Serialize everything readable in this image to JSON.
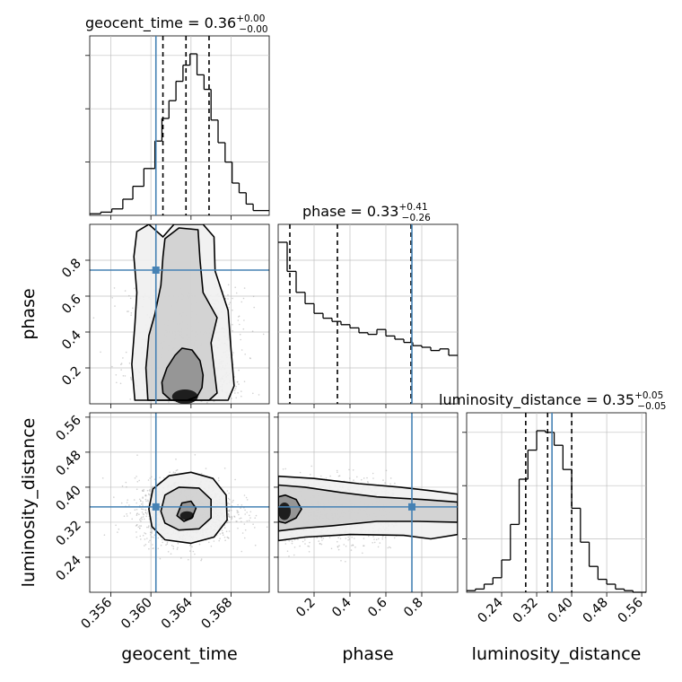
{
  "chart_data": {
    "type": "corner",
    "parameters": [
      "geocent_time",
      "phase",
      "luminosity_distance"
    ],
    "truths": [
      0.3605,
      0.745,
      0.355
    ],
    "colors": {
      "truth": "#4682b4",
      "hist": "#000000",
      "grid": "#c0c0c0",
      "points": "#9a9a9a"
    },
    "marginals": [
      {
        "parameter": "geocent_time",
        "title": "geocent_time = 0.36",
        "sup": "+0.00",
        "sub": "−0.00",
        "median": 0.3635,
        "quantiles": [
          0.3612,
          0.3635,
          0.3658
        ],
        "range": [
          0.3539,
          0.3718
        ],
        "bin_edges": [
          0.3539,
          0.355,
          0.3561,
          0.3572,
          0.3582,
          0.3593,
          0.3604,
          0.3611,
          0.3618,
          0.3625,
          0.3632,
          0.3639,
          0.3646,
          0.3653,
          0.366,
          0.3667,
          0.3674,
          0.3681,
          0.3688,
          0.3695,
          0.3702,
          0.3718
        ],
        "density": [
          0.01,
          0.02,
          0.04,
          0.1,
          0.18,
          0.29,
          0.46,
          0.6,
          0.71,
          0.83,
          0.93,
          1.0,
          0.87,
          0.78,
          0.59,
          0.45,
          0.33,
          0.2,
          0.14,
          0.07,
          0.03
        ],
        "ytick_fractions": [
          0.33,
          0.66,
          0.99
        ],
        "xticks": [
          0.356,
          0.36,
          0.364,
          0.368
        ],
        "xtick_labels": [
          "0.356",
          "0.360",
          "0.364",
          "0.368"
        ]
      },
      {
        "parameter": "phase",
        "title": "phase = 0.33",
        "sup": "+0.41",
        "sub": "−0.26",
        "median": 0.33,
        "quantiles": [
          0.065,
          0.33,
          0.74
        ],
        "range": [
          0.0,
          1.0
        ],
        "bin_edges": [
          0.0,
          0.05,
          0.1,
          0.15,
          0.2,
          0.25,
          0.3,
          0.35,
          0.4,
          0.45,
          0.5,
          0.55,
          0.6,
          0.65,
          0.7,
          0.75,
          0.8,
          0.85,
          0.9,
          0.95,
          1.0
        ],
        "density": [
          1.0,
          0.82,
          0.69,
          0.62,
          0.56,
          0.53,
          0.51,
          0.49,
          0.47,
          0.44,
          0.43,
          0.46,
          0.42,
          0.4,
          0.38,
          0.36,
          0.35,
          0.33,
          0.34,
          0.3
        ],
        "ytick_fractions": [],
        "xticks": [
          0.2,
          0.4,
          0.6,
          0.8
        ],
        "xtick_labels": [
          "0.2",
          "0.4",
          "0.6",
          "0.8"
        ]
      },
      {
        "parameter": "luminosity_distance",
        "title": "luminosity_distance = 0.35",
        "sup": "+0.05",
        "sub": "−0.05",
        "median": 0.345,
        "quantiles": [
          0.295,
          0.345,
          0.4
        ],
        "range": [
          0.16,
          0.57
        ],
        "bin_edges": [
          0.16,
          0.18,
          0.2,
          0.22,
          0.24,
          0.26,
          0.28,
          0.3,
          0.32,
          0.34,
          0.36,
          0.38,
          0.4,
          0.42,
          0.44,
          0.46,
          0.48,
          0.5,
          0.52,
          0.54,
          0.56,
          0.57
        ],
        "density": [
          0.01,
          0.02,
          0.05,
          0.09,
          0.2,
          0.42,
          0.7,
          0.88,
          1.0,
          0.99,
          0.91,
          0.76,
          0.52,
          0.31,
          0.16,
          0.08,
          0.05,
          0.02,
          0.01,
          0.0,
          0.0
        ],
        "ytick_fractions": [
          0.33,
          0.66,
          0.99
        ],
        "xticks": [
          0.24,
          0.32,
          0.4,
          0.48,
          0.56
        ],
        "xtick_labels": [
          "0.24",
          "0.32",
          "0.40",
          "0.48",
          "0.56"
        ]
      }
    ],
    "joints": [
      {
        "x_parameter": "geocent_time",
        "y_parameter": "phase",
        "x_range": [
          0.3539,
          0.3718
        ],
        "y_range": [
          0.0,
          1.0
        ],
        "yticks": [
          0.2,
          0.4,
          0.6,
          0.8
        ],
        "ytick_labels": [
          "0.2",
          "0.4",
          "0.6",
          "0.8"
        ],
        "x_center": 0.3635,
        "x_sigma": 0.00245,
        "y_profile": "decreasing",
        "contours": [
          {
            "level": 0.39,
            "points": [
              [
                0.362,
                0.02
              ],
              [
                0.3612,
                0.06
              ],
              [
                0.3611,
                0.12
              ],
              [
                0.3616,
                0.2
              ],
              [
                0.3624,
                0.27
              ],
              [
                0.3631,
                0.31
              ],
              [
                0.3641,
                0.3
              ],
              [
                0.3649,
                0.24
              ],
              [
                0.3652,
                0.16
              ],
              [
                0.3651,
                0.09
              ],
              [
                0.3646,
                0.04
              ],
              [
                0.3636,
                0.02
              ]
            ]
          },
          {
            "level": 0.86,
            "points": [
              [
                0.3597,
                0.02
              ],
              [
                0.3595,
                0.2
              ],
              [
                0.3598,
                0.38
              ],
              [
                0.3604,
                0.5
              ],
              [
                0.361,
                0.66
              ],
              [
                0.3612,
                0.82
              ],
              [
                0.3614,
                0.92
              ],
              [
                0.3628,
                0.98
              ],
              [
                0.3647,
                0.97
              ],
              [
                0.3649,
                0.8
              ],
              [
                0.3652,
                0.62
              ],
              [
                0.3666,
                0.48
              ],
              [
                0.366,
                0.34
              ],
              [
                0.3663,
                0.2
              ],
              [
                0.3666,
                0.06
              ],
              [
                0.3658,
                0.02
              ]
            ]
          },
          {
            "level": 0.99,
            "points": [
              [
                0.3584,
                0.02
              ],
              [
                0.3581,
                0.22
              ],
              [
                0.3584,
                0.44
              ],
              [
                0.3586,
                0.62
              ],
              [
                0.3583,
                0.82
              ],
              [
                0.3586,
                0.96
              ],
              [
                0.3598,
                1.0
              ],
              [
                0.3612,
                0.93
              ],
              [
                0.3623,
                1.0
              ],
              [
                0.3652,
                1.0
              ],
              [
                0.3663,
                0.93
              ],
              [
                0.3664,
                0.74
              ],
              [
                0.3677,
                0.52
              ],
              [
                0.368,
                0.3
              ],
              [
                0.3683,
                0.1
              ],
              [
                0.3677,
                0.02
              ]
            ]
          }
        ],
        "center_blob": {
          "x": 0.3634,
          "y": 0.04,
          "rx": 0.0012,
          "ry": 0.035
        }
      },
      {
        "x_parameter": "geocent_time",
        "y_parameter": "luminosity_distance",
        "x_range": [
          0.3539,
          0.3718
        ],
        "y_range": [
          0.16,
          0.57
        ],
        "yticks": [
          0.24,
          0.32,
          0.4,
          0.48,
          0.56
        ],
        "ytick_labels": [
          "0.24",
          "0.32",
          "0.40",
          "0.48",
          "0.56"
        ],
        "x_center": 0.3635,
        "x_sigma": 0.00245,
        "y_center": 0.345,
        "y_sigma": 0.036,
        "contours": [
          {
            "level": 0.39,
            "points": [
              [
                0.3626,
                0.335
              ],
              [
                0.3631,
                0.364
              ],
              [
                0.364,
                0.368
              ],
              [
                0.3645,
                0.352
              ],
              [
                0.3641,
                0.33
              ],
              [
                0.3633,
                0.322
              ]
            ]
          },
          {
            "level": 0.86,
            "points": [
              [
                0.361,
                0.345
              ],
              [
                0.3614,
                0.382
              ],
              [
                0.3628,
                0.4
              ],
              [
                0.3648,
                0.398
              ],
              [
                0.366,
                0.372
              ],
              [
                0.366,
                0.33
              ],
              [
                0.3648,
                0.305
              ],
              [
                0.3628,
                0.302
              ],
              [
                0.3614,
                0.318
              ]
            ]
          },
          {
            "level": 0.99,
            "points": [
              [
                0.3598,
                0.35
              ],
              [
                0.3602,
                0.396
              ],
              [
                0.3618,
                0.426
              ],
              [
                0.364,
                0.434
              ],
              [
                0.3662,
                0.42
              ],
              [
                0.3675,
                0.382
              ],
              [
                0.3676,
                0.325
              ],
              [
                0.3663,
                0.286
              ],
              [
                0.364,
                0.272
              ],
              [
                0.3614,
                0.28
              ],
              [
                0.3601,
                0.31
              ]
            ]
          }
        ],
        "center_blob": {
          "x": 0.3636,
          "y": 0.335,
          "rx": 0.0006,
          "ry": 0.008
        }
      },
      {
        "x_parameter": "phase",
        "y_parameter": "luminosity_distance",
        "x_range": [
          0.0,
          1.0
        ],
        "y_range": [
          0.16,
          0.57
        ],
        "xticks": [
          0.2,
          0.4,
          0.6,
          0.8
        ],
        "xtick_labels": [
          "0.2",
          "0.4",
          "0.6",
          "0.8"
        ],
        "y_center": 0.345,
        "y_sigma": 0.034,
        "x_profile": "decreasing",
        "contours": [
          {
            "level": 0.39,
            "points": [
              [
                0.0,
                0.322
              ],
              [
                0.04,
                0.318
              ],
              [
                0.1,
                0.33
              ],
              [
                0.13,
                0.35
              ],
              [
                0.1,
                0.372
              ],
              [
                0.04,
                0.382
              ],
              [
                0.0,
                0.378
              ]
            ]
          },
          {
            "level": 0.86,
            "points": [
              [
                0.0,
                0.3
              ],
              [
                0.12,
                0.306
              ],
              [
                0.3,
                0.312
              ],
              [
                0.55,
                0.322
              ],
              [
                0.78,
                0.322
              ],
              [
                1.0,
                0.32
              ],
              [
                1.0,
                0.366
              ],
              [
                0.8,
                0.372
              ],
              [
                0.55,
                0.378
              ],
              [
                0.35,
                0.388
              ],
              [
                0.15,
                0.4
              ],
              [
                0.0,
                0.405
              ]
            ]
          },
          {
            "level": 0.99,
            "points": [
              [
                0.0,
                0.278
              ],
              [
                0.15,
                0.286
              ],
              [
                0.4,
                0.292
              ],
              [
                0.7,
                0.29
              ],
              [
                0.85,
                0.282
              ],
              [
                1.0,
                0.292
              ],
              [
                1.0,
                0.384
              ],
              [
                0.85,
                0.392
              ],
              [
                0.68,
                0.4
              ],
              [
                0.45,
                0.408
              ],
              [
                0.2,
                0.42
              ],
              [
                0.0,
                0.425
              ]
            ]
          }
        ],
        "center_blob": {
          "x": 0.035,
          "y": 0.345,
          "rx": 0.03,
          "ry": 0.018
        }
      }
    ]
  }
}
